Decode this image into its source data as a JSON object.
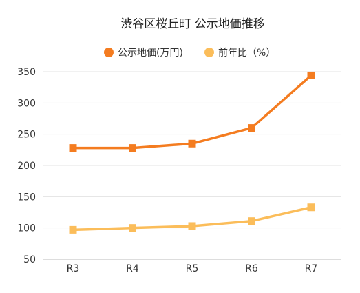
{
  "chart_data": {
    "type": "line",
    "title": "渋谷区桜丘町 公示地価推移",
    "xlabel": "",
    "ylabel": "",
    "categories": [
      "R3",
      "R4",
      "R5",
      "R6",
      "R7"
    ],
    "ylim": [
      50,
      350
    ],
    "yticks": [
      50,
      100,
      150,
      200,
      250,
      300,
      350
    ],
    "grid": true,
    "legend_position": "top-center",
    "series": [
      {
        "name": "公示地価(万円)",
        "values": [
          228,
          228,
          235,
          260,
          344
        ],
        "color": "#f47c20",
        "marker": "square"
      },
      {
        "name": "前年比（%）",
        "values": [
          97,
          100,
          103,
          111,
          133
        ],
        "color": "#fbbd5a",
        "marker": "square"
      }
    ]
  }
}
